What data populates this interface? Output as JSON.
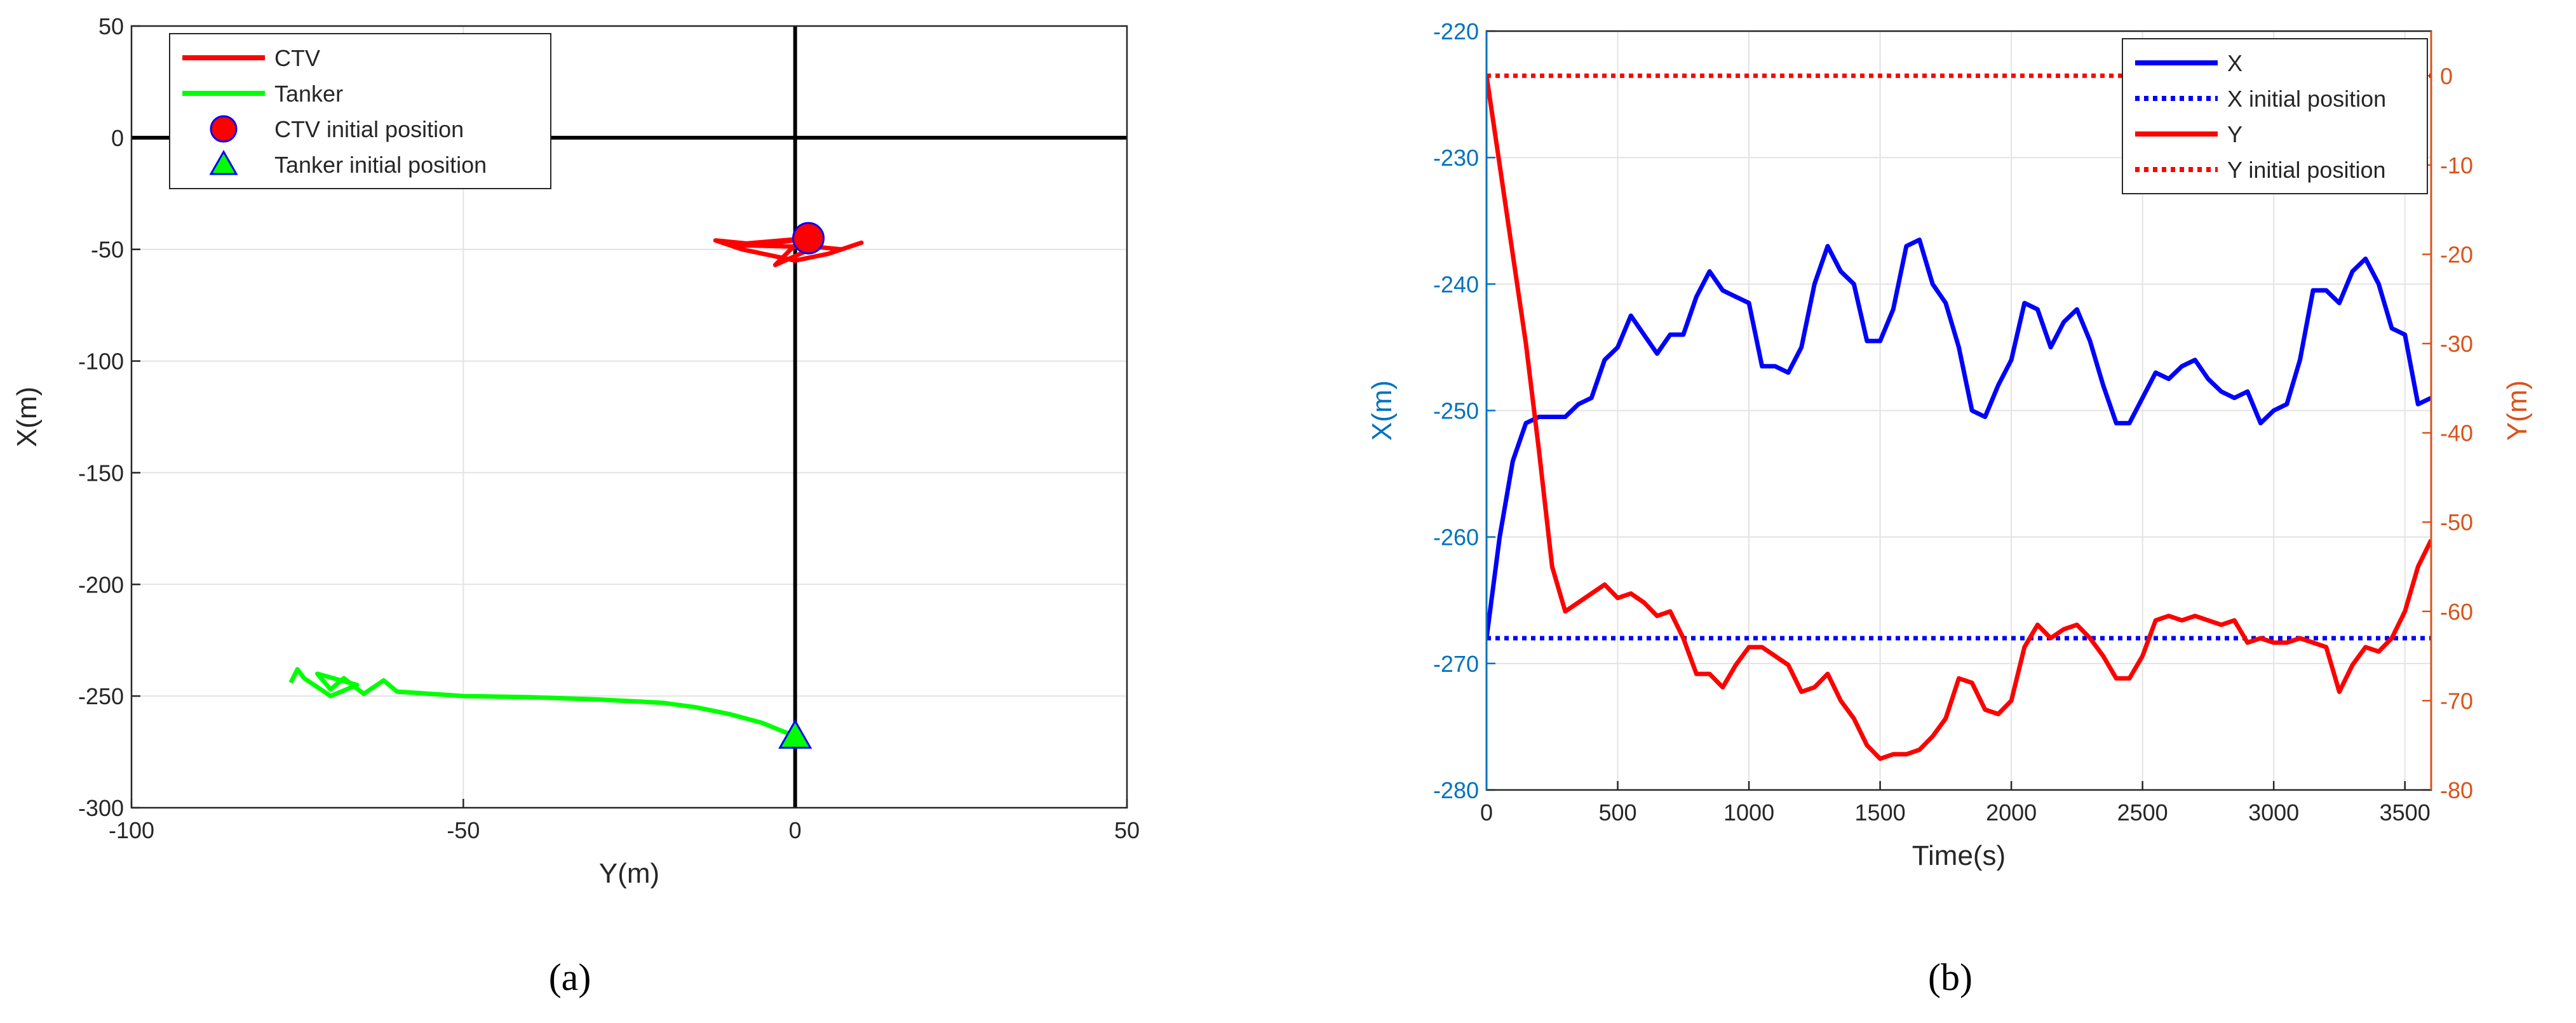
{
  "chart_data": [
    {
      "type": "line",
      "caption": "(a)",
      "xlabel": "Y(m)",
      "ylabel": "X(m)",
      "xlim": [
        -100,
        50
      ],
      "xticks": [
        -100,
        -50,
        0,
        50
      ],
      "ylim": [
        -300,
        50
      ],
      "yticks": [
        -300,
        -250,
        -200,
        -150,
        -100,
        -50,
        0,
        50
      ],
      "grid": true,
      "zero_lines": true,
      "legend": "upper left",
      "series": [
        {
          "name": "CTV",
          "color": "#ff0000",
          "x": [
            2,
            -5,
            -12,
            -8,
            0,
            5,
            10,
            7,
            0,
            -3,
            3,
            -10,
            2
          ],
          "values": [
            -45,
            -48,
            -46,
            -50,
            -55,
            -52,
            -47,
            -50,
            -48,
            -57,
            -49,
            -48,
            -45
          ]
        },
        {
          "name": "Tanker",
          "color": "#00ff00",
          "x": [
            0,
            -5,
            -10,
            -15,
            -20,
            -30,
            -40,
            -50,
            -55,
            -60,
            -62,
            -65,
            -68,
            -70,
            -72,
            -66,
            -70,
            -74,
            -75,
            -76
          ],
          "values": [
            -268,
            -262,
            -258,
            -255,
            -253,
            -251.5,
            -250.5,
            -250,
            -249,
            -248,
            -243,
            -249,
            -242,
            -247,
            -240,
            -245,
            -250,
            -242,
            -238,
            -244
          ]
        },
        {
          "name": "CTV initial position",
          "color": "#ff0000",
          "edgecolor": "#0000ff",
          "marker": "circle",
          "x": [
            2
          ],
          "values": [
            -45
          ]
        },
        {
          "name": "Tanker initial position",
          "color": "#00ff00",
          "edgecolor": "#0000ff",
          "marker": "triangle",
          "x": [
            0
          ],
          "values": [
            -268
          ]
        }
      ]
    },
    {
      "type": "line",
      "caption": "(b)",
      "xlabel": "Time(s)",
      "ylabel": "X(m)",
      "y2label": "Y(m)",
      "ylabel_color": "#0072bd",
      "y2label_color": "#d95319",
      "xlim": [
        0,
        3600
      ],
      "xticks": [
        0,
        500,
        1000,
        1500,
        2000,
        2500,
        3000,
        3500
      ],
      "ylim": [
        -280,
        -220
      ],
      "yticks": [
        -280,
        -270,
        -260,
        -250,
        -240,
        -230,
        -220
      ],
      "y2lim": [
        -80,
        5
      ],
      "y2ticks": [
        -80,
        -70,
        -60,
        -50,
        -40,
        -30,
        -20,
        -10,
        0
      ],
      "grid": true,
      "legend": "upper right",
      "x": [
        0,
        50,
        100,
        150,
        200,
        250,
        300,
        350,
        400,
        450,
        500,
        550,
        600,
        650,
        700,
        750,
        800,
        850,
        900,
        950,
        1000,
        1050,
        1100,
        1150,
        1200,
        1250,
        1300,
        1350,
        1400,
        1450,
        1500,
        1550,
        1600,
        1650,
        1700,
        1750,
        1800,
        1850,
        1900,
        1950,
        2000,
        2050,
        2100,
        2150,
        2200,
        2250,
        2300,
        2350,
        2400,
        2450,
        2500,
        2550,
        2600,
        2650,
        2700,
        2750,
        2800,
        2850,
        2900,
        2950,
        3000,
        3050,
        3100,
        3150,
        3200,
        3250,
        3300,
        3350,
        3400,
        3450,
        3500,
        3550,
        3600
      ],
      "series": [
        {
          "name": "X",
          "color": "#0000ff",
          "values": [
            -268,
            -260,
            -254,
            -251,
            -250.5,
            -250.5,
            -250.5,
            -249.5,
            -249,
            -246,
            -245,
            -242.5,
            -244,
            -245.5,
            -244,
            -244,
            -241,
            -239,
            -240.5,
            -241,
            -241.5,
            -246.5,
            -246.5,
            -247,
            -245,
            -240,
            -237,
            -239,
            -240,
            -244.5,
            -244.5,
            -242,
            -237,
            -236.5,
            -240,
            -241.5,
            -245,
            -250,
            -250.5,
            -248,
            -246,
            -241.5,
            -242,
            -245,
            -243,
            -242,
            -244.5,
            -248,
            -251,
            -251,
            -249,
            -247,
            -247.5,
            -246.5,
            -246,
            -247.5,
            -248.5,
            -249,
            -248.5,
            -251,
            -250,
            -249.5,
            -246,
            -240.5,
            -240.5,
            -241.5,
            -239,
            -238,
            -240,
            -243.5,
            -244,
            -249.5,
            -249
          ]
        },
        {
          "name": "X initial position",
          "color": "#0000ff",
          "linestyle": "dotted",
          "x": [
            0,
            3600
          ],
          "values": [
            -268,
            -268
          ]
        },
        {
          "name": "Y",
          "color": "#ff0000",
          "axis": "y2",
          "values": [
            0,
            -10,
            -20,
            -30,
            -42,
            -55,
            -60,
            -59,
            -58,
            -57,
            -58.5,
            -58,
            -59,
            -60.5,
            -60,
            -63,
            -67,
            -67,
            -68.5,
            -66,
            -64,
            -64,
            -65,
            -66,
            -69,
            -68.5,
            -67,
            -70,
            -72,
            -75,
            -76.5,
            -76,
            -76,
            -75.5,
            -74,
            -72,
            -67.5,
            -68,
            -71,
            -71.5,
            -70,
            -64,
            -61.5,
            -63,
            -62,
            -61.5,
            -63,
            -65,
            -67.5,
            -67.5,
            -65,
            -61,
            -60.5,
            -61,
            -60.5,
            -61,
            -61.5,
            -61,
            -63.5,
            -63,
            -63.5,
            -63.5,
            -63,
            -63.5,
            -64,
            -69,
            -66,
            -64,
            -64.5,
            -63,
            -60,
            -55,
            -52
          ]
        },
        {
          "name": "Y initial position",
          "color": "#ff0000",
          "linestyle": "dotted",
          "axis": "y2",
          "x": [
            0,
            3600
          ],
          "values": [
            0,
            0
          ]
        }
      ]
    }
  ]
}
